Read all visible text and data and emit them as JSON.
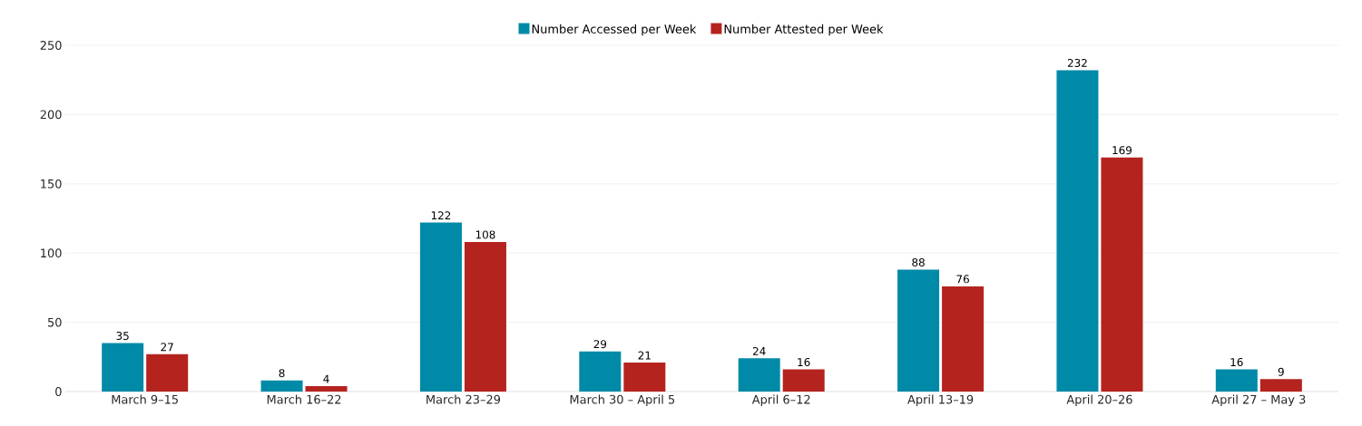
{
  "chart_data": {
    "type": "bar",
    "categories": [
      "March 9–15",
      "March 16–22",
      "March 23–29",
      "March 30 – April 5",
      "April 6–12",
      "April 13–19",
      "April 20–26",
      "April 27 – May 3"
    ],
    "series": [
      {
        "name": "Number Accessed per Week",
        "color": "#008aa8",
        "values": [
          35,
          8,
          122,
          29,
          24,
          88,
          232,
          16
        ]
      },
      {
        "name": "Number Attested per Week",
        "color": "#b5231f",
        "values": [
          27,
          4,
          108,
          21,
          16,
          76,
          169,
          9
        ]
      }
    ],
    "ylim": [
      0,
      250
    ],
    "yticks": [
      0,
      50,
      100,
      150,
      200,
      250
    ],
    "grid": "y",
    "legend": "top",
    "data_labels": true
  }
}
